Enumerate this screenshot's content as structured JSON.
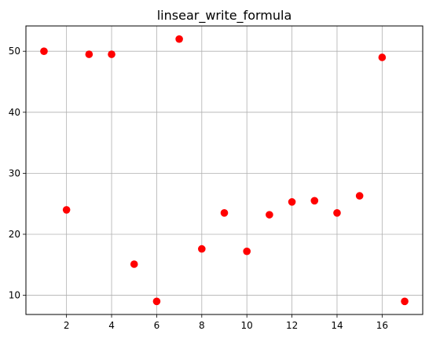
{
  "chart_data": {
    "type": "scatter",
    "title": "linsear_write_formula",
    "xlabel": "",
    "ylabel": "",
    "xlim": [
      0.2,
      17.8
    ],
    "ylim": [
      6.85,
      54.15
    ],
    "xticks": [
      2,
      4,
      6,
      8,
      10,
      12,
      14,
      16
    ],
    "yticks": [
      10,
      20,
      30,
      40,
      50
    ],
    "grid": true,
    "marker_color": "#ff0000",
    "series": [
      {
        "x": [
          1,
          2,
          3,
          4,
          5,
          6,
          7,
          8,
          9,
          10,
          11,
          12,
          13,
          14,
          15,
          16,
          17
        ],
        "y": [
          50.0,
          24.0,
          49.5,
          49.5,
          15.1,
          9.0,
          52.0,
          17.6,
          23.5,
          17.2,
          23.2,
          25.3,
          25.5,
          23.5,
          26.3,
          49.0,
          9.0
        ]
      }
    ]
  }
}
